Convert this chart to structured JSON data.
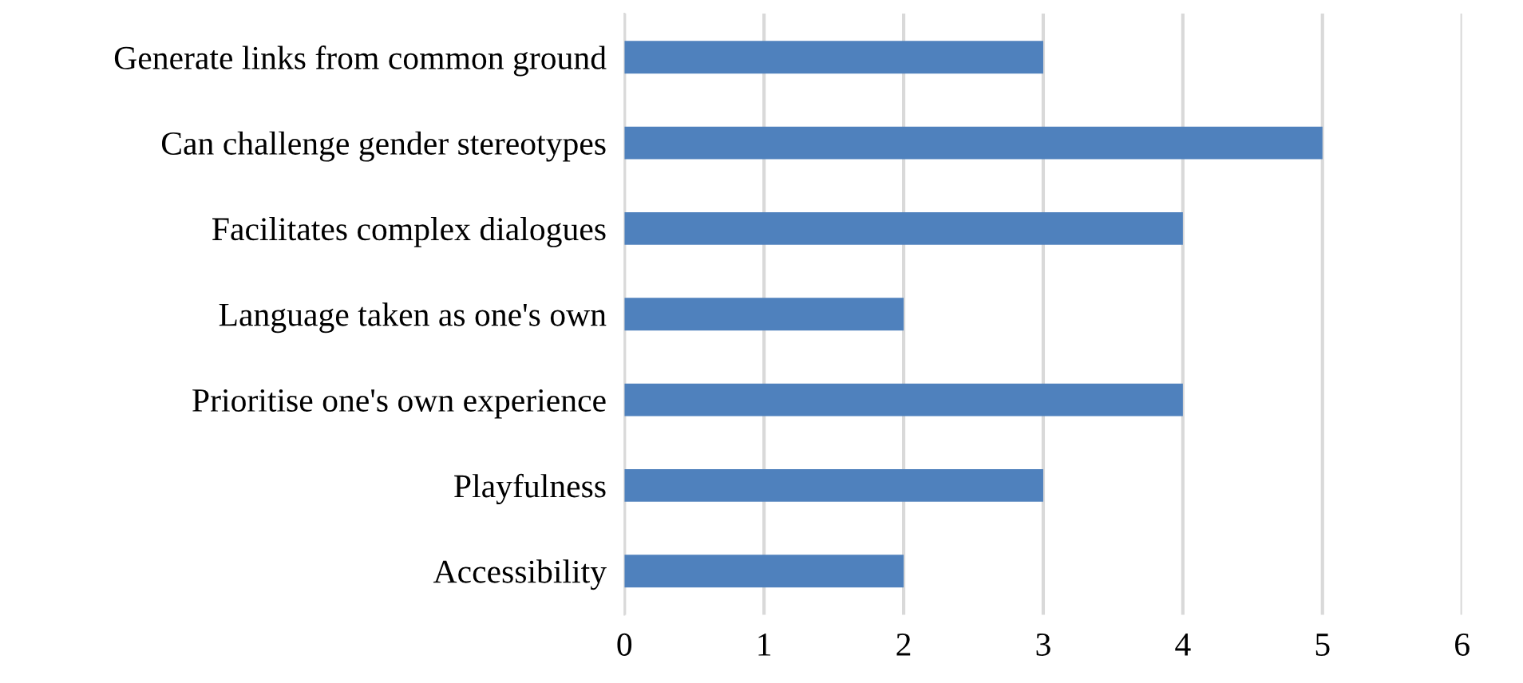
{
  "chart_data": {
    "type": "bar",
    "orientation": "horizontal",
    "categories": [
      "Generate links from common ground",
      "Can challenge gender stereotypes",
      "Facilitates complex dialogues",
      "Language taken as one's own",
      "Prioritise one's own experience",
      "Playfulness",
      "Accessibility"
    ],
    "values": [
      3,
      5,
      4,
      2,
      4,
      3,
      2
    ],
    "color": "#4f81bd",
    "xlim": [
      0,
      6
    ],
    "xticks": [
      0,
      1,
      2,
      3,
      4,
      5,
      6
    ],
    "grid": "x",
    "legend": false
  }
}
